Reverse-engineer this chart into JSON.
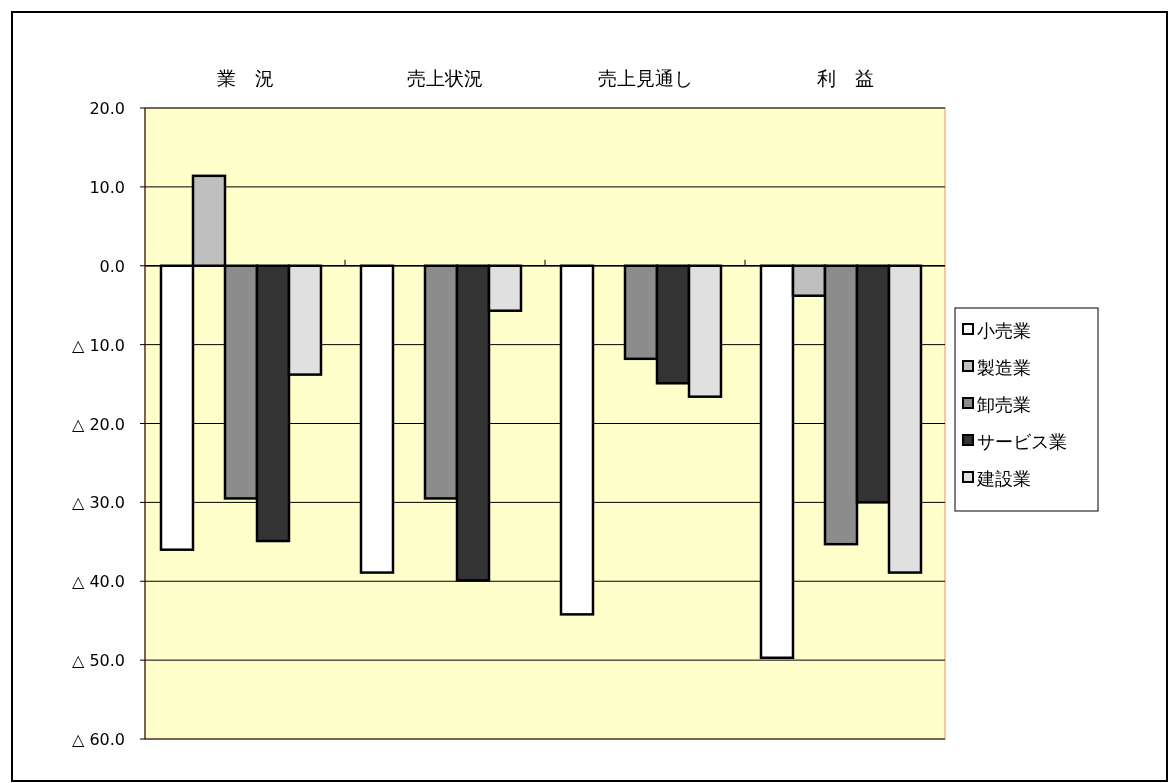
{
  "chart_data": {
    "type": "bar",
    "categories": [
      "業　況",
      "売上状況",
      "売上見通し",
      "利　益"
    ],
    "series": [
      {
        "name": "小売業",
        "color": "#ffffff",
        "values": [
          -36.0,
          -38.9,
          -44.2,
          -49.7
        ]
      },
      {
        "name": "製造業",
        "color": "#bfbfbf",
        "values": [
          11.4,
          null,
          null,
          -3.8
        ]
      },
      {
        "name": "卸売業",
        "color": "#8c8c8c",
        "values": [
          -29.5,
          -29.5,
          -11.8,
          -35.3
        ]
      },
      {
        "name": "サービス業",
        "color": "#333333",
        "values": [
          -34.9,
          -39.9,
          -14.9,
          -30.0
        ]
      },
      {
        "name": "建設業",
        "color": "#e0e0e0",
        "values": [
          -13.8,
          -5.7,
          -16.6,
          -38.9
        ]
      }
    ],
    "ylim": [
      -60,
      20
    ],
    "yticks": [
      {
        "value": 20,
        "label": "20.0"
      },
      {
        "value": 10,
        "label": "10.0"
      },
      {
        "value": 0,
        "label": "0.0"
      },
      {
        "value": -10,
        "label": "△ 10.0"
      },
      {
        "value": -20,
        "label": "△ 20.0"
      },
      {
        "value": -30,
        "label": "△ 30.0"
      },
      {
        "value": -40,
        "label": "△ 40.0"
      },
      {
        "value": -50,
        "label": "△ 50.0"
      },
      {
        "value": -60,
        "label": "△ 60.0"
      }
    ],
    "grid": "y",
    "legend": "right"
  }
}
